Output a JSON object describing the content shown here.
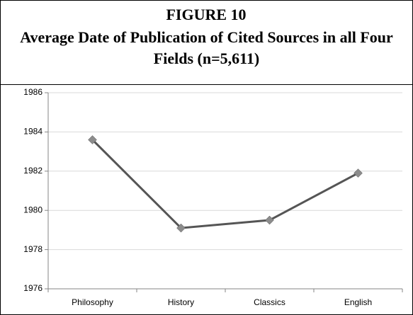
{
  "chart_data": {
    "type": "line",
    "title": "FIGURE 10",
    "subtitle": "Average Date of Publication of Cited Sources in all Four Fields (n=5,611)",
    "categories": [
      "Philosophy",
      "History",
      "Classics",
      "English"
    ],
    "series": [
      {
        "name": null,
        "color": "#555555",
        "marker_color": "#8c8c8c",
        "values": [
          1983.6,
          1979.1,
          1979.5,
          1981.9
        ]
      }
    ],
    "ylim": [
      1976,
      1986
    ],
    "yticks": [
      1976,
      1978,
      1980,
      1982,
      1984,
      1986
    ],
    "grid": true
  }
}
